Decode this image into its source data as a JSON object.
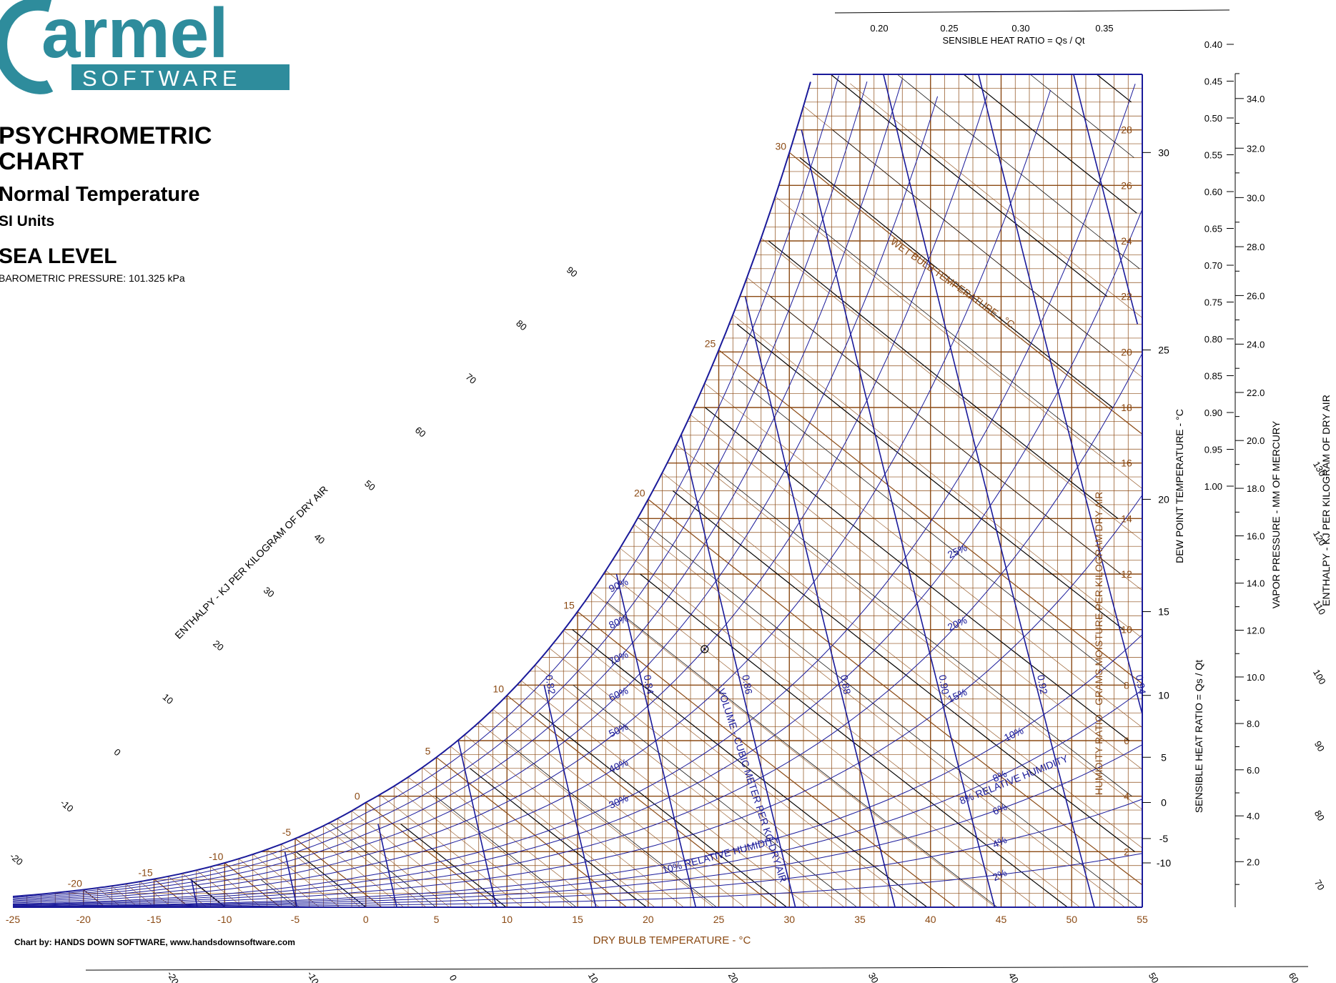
{
  "logo": {
    "wordmark": "armel",
    "mark": "C",
    "subtitle": "SOFTWARE"
  },
  "title": {
    "line1": "PSYCHROMETRIC",
    "line2": "CHART",
    "line3": "Normal Temperature",
    "line4": "SI Units",
    "line5": "SEA LEVEL",
    "line6": "BAROMETRIC PRESSURE: 101.325 kPa"
  },
  "credit": "Chart by: HANDS DOWN SOFTWARE, www.handsdownsoftware.com",
  "colors": {
    "grid": "#8b4a14",
    "curves": "#1a1a9a",
    "enthalpy": "#000000",
    "logo": "#2e8c9c"
  },
  "chart_data": {
    "type": "psychrometric",
    "xlabel": "DRY BULB TEMPERATURE - °C",
    "xlim": [
      -25,
      55
    ],
    "x_ticks": [
      -25,
      -20,
      -15,
      -10,
      -5,
      0,
      5,
      10,
      15,
      20,
      25,
      30,
      35,
      40,
      45,
      50,
      55
    ],
    "right_axis_label": "HUMIDITY RATIO - GRAMS MOISTURE PER KILOGRAM DRY AIR",
    "humidity_ratio_ticks": [
      2,
      4,
      6,
      8,
      10,
      12,
      14,
      16,
      18,
      20,
      22,
      24,
      26,
      28
    ],
    "ylim_humidity_ratio": [
      0,
      30
    ],
    "dew_point_label": "DEW POINT TEMPERATURE - °C",
    "dew_point_ticks": [
      -10,
      -5,
      0,
      5,
      10,
      15,
      20,
      25,
      30
    ],
    "shr_label": "SENSIBLE HEAT RATIO = Qs / Qt",
    "shr_ticks_right": [
      "0.40",
      "0.45",
      "0.50",
      "0.55",
      "0.60",
      "0.65",
      "0.70",
      "0.75",
      "0.80",
      "0.85",
      "0.90",
      "0.95",
      "1.00"
    ],
    "shr_ticks_top": [
      "0.20",
      "0.25",
      "0.30",
      "0.35"
    ],
    "vapor_pressure_label": "VAPOR PRESSURE - MM OF MERCURY",
    "vapor_pressure_ticks": [
      "2.0",
      "4.0",
      "6.0",
      "8.0",
      "10.0",
      "12.0",
      "14.0",
      "16.0",
      "18.0",
      "20.0",
      "22.0",
      "24.0",
      "26.0",
      "28.0",
      "30.0",
      "32.0",
      "34.0"
    ],
    "enthalpy_label": "ENTHALPY - KJ PER KILOGRAM OF DRY AIR",
    "enthalpy_left_ticks": [
      -20,
      -10,
      0,
      10,
      20,
      30,
      40,
      50,
      60,
      70,
      80,
      90,
      100,
      110,
      120,
      130
    ],
    "enthalpy_right_ticks": [
      70,
      80,
      90,
      100,
      110,
      120,
      130
    ],
    "enthalpy_bottom_ticks": [
      -20,
      -10,
      0,
      10,
      20,
      30,
      40,
      50,
      60
    ],
    "wet_bulb_label": "WET BULB TEMPERATURE - °C",
    "wet_bulb_values": [
      -20,
      -15,
      -10,
      -5,
      0,
      5,
      10,
      15,
      20,
      25,
      30
    ],
    "wet_bulb_interior_labels": [
      "-15",
      "-10",
      "-5",
      "5",
      "10",
      "15",
      "20",
      "25",
      "30"
    ],
    "relative_humidity_label": "RELATIVE HUMIDITY",
    "relative_humidity_series": [
      {
        "label": "2%",
        "rh": 2
      },
      {
        "label": "4%",
        "rh": 4
      },
      {
        "label": "6%",
        "rh": 6
      },
      {
        "label": "8%",
        "rh": 8
      },
      {
        "label": "10%",
        "rh": 10
      },
      {
        "label": "15%",
        "rh": 15
      },
      {
        "label": "20%",
        "rh": 20
      },
      {
        "label": "25%",
        "rh": 25
      },
      {
        "label": "30%",
        "rh": 30
      },
      {
        "label": "40%",
        "rh": 40
      },
      {
        "label": "50%",
        "rh": 50
      },
      {
        "label": "60%",
        "rh": 60
      },
      {
        "label": "70%",
        "rh": 70
      },
      {
        "label": "80%",
        "rh": 80
      },
      {
        "label": "90%",
        "rh": 90
      }
    ],
    "rh_10_text": "10% RELATIVE HUMIDITY",
    "rh_8_text": "8% RELATIVE HUMIDITY",
    "volume_label": "VOLUME - CUBIC METER PER KG DRY AIR",
    "specific_volume_values": [
      "0.74",
      "0.76",
      "0.78",
      "0.80",
      "0.82",
      "0.84",
      "0.86",
      "0.88",
      "0.90",
      "0.92",
      "0.94",
      "0.96"
    ],
    "specific_volume_numbers": [
      0.74,
      0.76,
      0.78,
      0.8,
      0.82,
      0.84,
      0.86,
      0.88,
      0.9,
      0.92,
      0.94,
      0.96
    ],
    "reference_point": {
      "dry_bulb": 24,
      "rh": 50
    }
  }
}
